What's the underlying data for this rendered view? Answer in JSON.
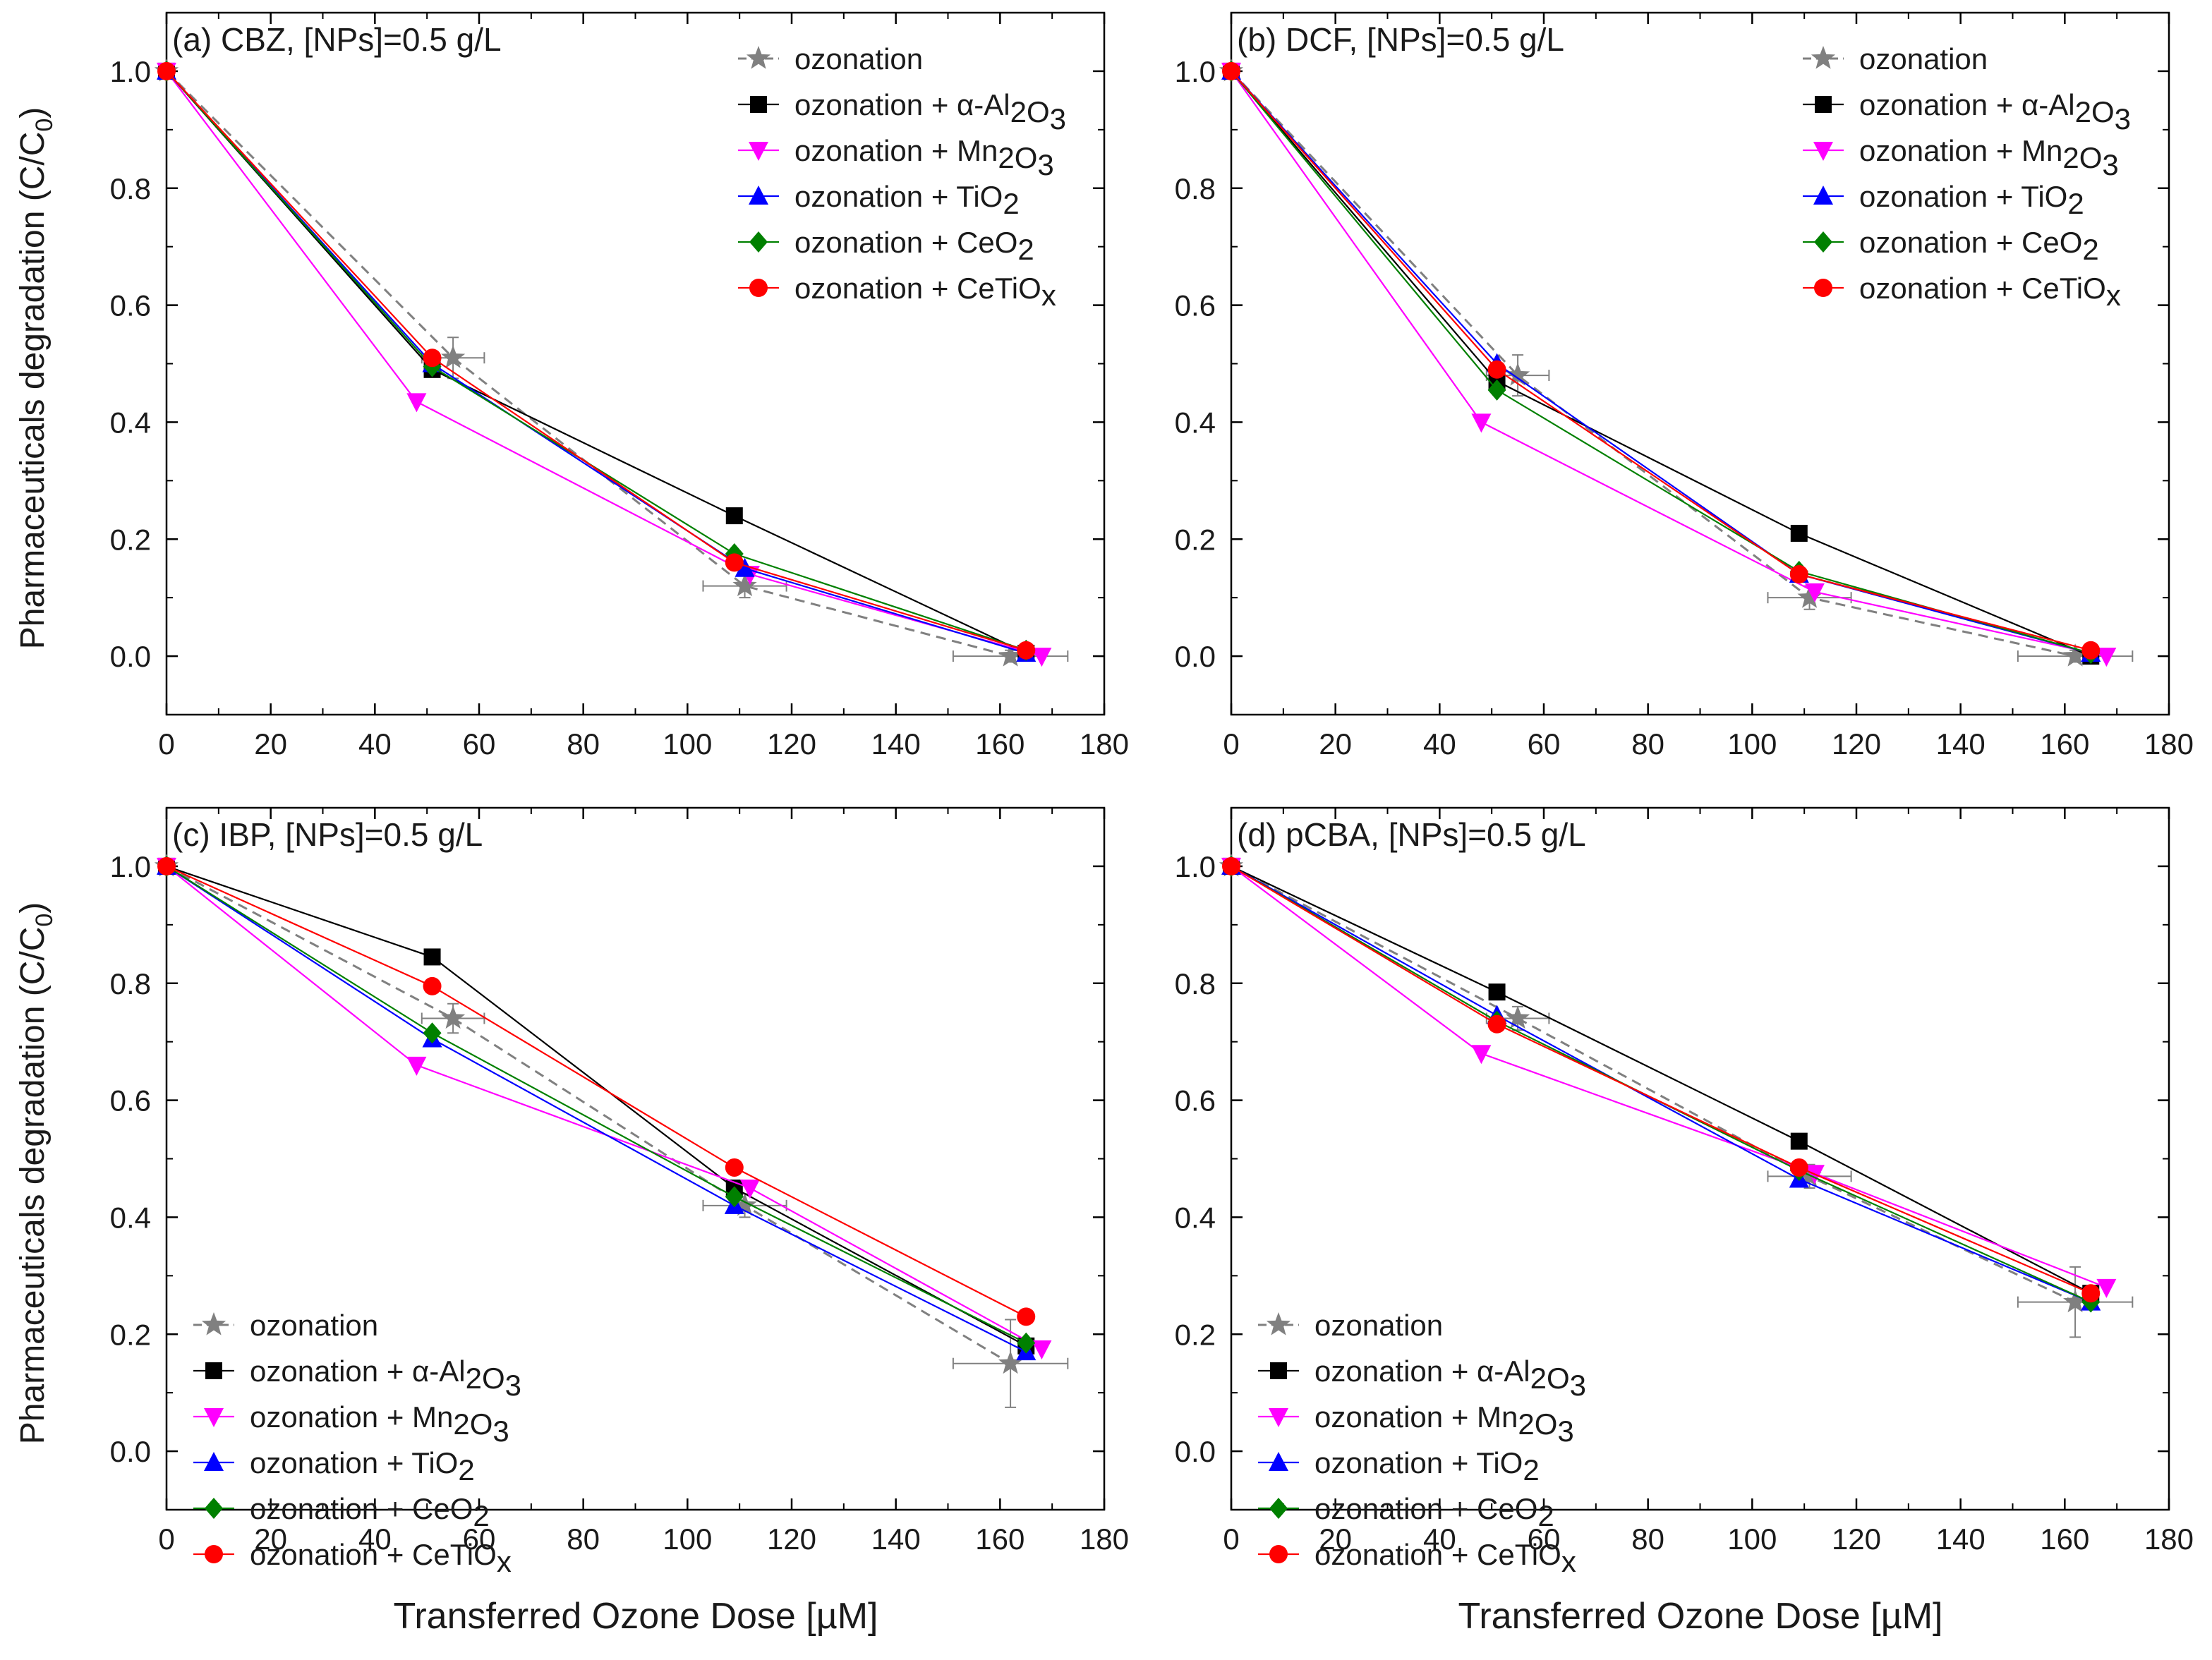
{
  "figure": {
    "ylabel_main": "Pharmaceuticals degradation (C/C",
    "ylabel_sub": "0",
    "ylabel_close": ")",
    "xlabel": "Transferred Ozone Dose [µM]"
  },
  "legend": [
    {
      "key": "ozonation",
      "text": "ozonation",
      "parts": [
        [
          "ozonation",
          ""
        ]
      ]
    },
    {
      "key": "al2o3",
      "text": "ozonation + α-Al2O3",
      "parts": [
        [
          "ozonation + α-Al",
          ""
        ],
        [
          "2",
          "sub"
        ],
        [
          "O",
          ""
        ],
        [
          "3",
          "sub"
        ]
      ]
    },
    {
      "key": "mn2o3",
      "text": "ozonation + Mn2O3",
      "parts": [
        [
          "ozonation + Mn",
          ""
        ],
        [
          "2",
          "sub"
        ],
        [
          "O",
          ""
        ],
        [
          "3",
          "sub"
        ]
      ]
    },
    {
      "key": "tio2",
      "text": "ozonation + TiO2",
      "parts": [
        [
          "ozonation + TiO",
          ""
        ],
        [
          "2",
          "sub"
        ]
      ]
    },
    {
      "key": "ceo2",
      "text": "ozonation + CeO2",
      "parts": [
        [
          "ozonation + CeO",
          ""
        ],
        [
          "2",
          "sub"
        ]
      ]
    },
    {
      "key": "cetiox",
      "text": "ozonation + CeTiOx",
      "parts": [
        [
          "ozonation + CeTiO",
          ""
        ],
        [
          "x",
          "sub"
        ]
      ]
    }
  ],
  "styles": {
    "ozonation": {
      "color": "#808080",
      "marker": "star",
      "dash": true
    },
    "al2o3": {
      "color": "#000000",
      "marker": "square",
      "dash": false
    },
    "mn2o3": {
      "color": "#ff00ff",
      "marker": "tri-down",
      "dash": false
    },
    "tio2": {
      "color": "#0000ff",
      "marker": "tri-up",
      "dash": false
    },
    "ceo2": {
      "color": "#008000",
      "marker": "diamond",
      "dash": false
    },
    "cetiox": {
      "color": "#ff0000",
      "marker": "circle",
      "dash": false
    }
  },
  "chart_data": [
    {
      "type": "line",
      "title": "(a) CBZ, [NPs]=0.5 g/L",
      "xlabel": "Transferred Ozone Dose [µM]",
      "ylabel": "Pharmaceuticals degradation (C/C0)",
      "xlim": [
        0,
        180
      ],
      "ylim": [
        -0.1,
        1.1
      ],
      "xticks": [
        0,
        20,
        40,
        60,
        80,
        100,
        120,
        140,
        160,
        180
      ],
      "yticks": [
        0.0,
        0.2,
        0.4,
        0.6,
        0.8,
        1.0
      ],
      "legend_position": "top-right",
      "series": [
        {
          "key": "ozonation",
          "name": "ozonation",
          "x": [
            0,
            55,
            111,
            162
          ],
          "y": [
            1.0,
            0.51,
            0.12,
            0.0
          ],
          "xerr": [
            0,
            6,
            8,
            11
          ],
          "yerr": [
            0,
            0.035,
            0.02,
            0.01
          ]
        },
        {
          "key": "al2o3",
          "name": "ozonation + α-Al2O3",
          "x": [
            0,
            51,
            109,
            165
          ],
          "y": [
            1.0,
            0.49,
            0.24,
            0.005
          ]
        },
        {
          "key": "mn2o3",
          "name": "ozonation + Mn2O3",
          "x": [
            0,
            48,
            112,
            168
          ],
          "y": [
            1.0,
            0.435,
            0.14,
            0.0
          ]
        },
        {
          "key": "tio2",
          "name": "ozonation + TiO2",
          "x": [
            0,
            51,
            111,
            165
          ],
          "y": [
            1.0,
            0.5,
            0.15,
            0.005
          ]
        },
        {
          "key": "ceo2",
          "name": "ozonation + CeO2",
          "x": [
            0,
            51,
            109,
            165
          ],
          "y": [
            1.0,
            0.495,
            0.175,
            0.01
          ]
        },
        {
          "key": "cetiox",
          "name": "ozonation + CeTiOx",
          "x": [
            0,
            51,
            109,
            165
          ],
          "y": [
            1.0,
            0.51,
            0.16,
            0.01
          ]
        }
      ]
    },
    {
      "type": "line",
      "title": "(b) DCF, [NPs]=0.5 g/L",
      "xlabel": "Transferred Ozone Dose [µM]",
      "ylabel": "Pharmaceuticals degradation (C/C0)",
      "xlim": [
        0,
        180
      ],
      "ylim": [
        -0.1,
        1.1
      ],
      "xticks": [
        0,
        20,
        40,
        60,
        80,
        100,
        120,
        140,
        160,
        180
      ],
      "yticks": [
        0.0,
        0.2,
        0.4,
        0.6,
        0.8,
        1.0
      ],
      "legend_position": "top-right",
      "series": [
        {
          "key": "ozonation",
          "name": "ozonation",
          "x": [
            0,
            55,
            111,
            162
          ],
          "y": [
            1.0,
            0.48,
            0.1,
            0.0
          ],
          "xerr": [
            0,
            6,
            8,
            11
          ],
          "yerr": [
            0,
            0.035,
            0.02,
            0.01
          ]
        },
        {
          "key": "al2o3",
          "name": "ozonation + α-Al2O3",
          "x": [
            0,
            51,
            109,
            165
          ],
          "y": [
            1.0,
            0.47,
            0.21,
            0.0
          ]
        },
        {
          "key": "mn2o3",
          "name": "ozonation + Mn2O3",
          "x": [
            0,
            48,
            112,
            168
          ],
          "y": [
            1.0,
            0.4,
            0.11,
            0.0
          ]
        },
        {
          "key": "tio2",
          "name": "ozonation + TiO2",
          "x": [
            0,
            51,
            109,
            165
          ],
          "y": [
            1.0,
            0.5,
            0.14,
            0.005
          ]
        },
        {
          "key": "ceo2",
          "name": "ozonation + CeO2",
          "x": [
            0,
            51,
            109,
            165
          ],
          "y": [
            1.0,
            0.455,
            0.145,
            0.005
          ]
        },
        {
          "key": "cetiox",
          "name": "ozonation + CeTiOx",
          "x": [
            0,
            51,
            109,
            165
          ],
          "y": [
            1.0,
            0.49,
            0.14,
            0.01
          ]
        }
      ]
    },
    {
      "type": "line",
      "title": "(c) IBP, [NPs]=0.5 g/L",
      "xlabel": "Transferred Ozone Dose [µM]",
      "ylabel": "Pharmaceuticals degradation (C/C0)",
      "xlim": [
        0,
        180
      ],
      "ylim": [
        -0.1,
        1.1
      ],
      "xticks": [
        0,
        20,
        40,
        60,
        80,
        100,
        120,
        140,
        160,
        180
      ],
      "yticks": [
        0.0,
        0.2,
        0.4,
        0.6,
        0.8,
        1.0
      ],
      "legend_position": "bottom-left",
      "series": [
        {
          "key": "ozonation",
          "name": "ozonation",
          "x": [
            0,
            55,
            111,
            162
          ],
          "y": [
            1.0,
            0.74,
            0.42,
            0.15
          ],
          "xerr": [
            0,
            6,
            8,
            11
          ],
          "yerr": [
            0,
            0.025,
            0.02,
            0.075
          ]
        },
        {
          "key": "al2o3",
          "name": "ozonation + α-Al2O3",
          "x": [
            0,
            51,
            109,
            165
          ],
          "y": [
            1.0,
            0.845,
            0.45,
            0.18
          ]
        },
        {
          "key": "mn2o3",
          "name": "ozonation + Mn2O3",
          "x": [
            0,
            48,
            112,
            168
          ],
          "y": [
            1.0,
            0.66,
            0.45,
            0.175
          ]
        },
        {
          "key": "tio2",
          "name": "ozonation + TiO2",
          "x": [
            0,
            51,
            109,
            165
          ],
          "y": [
            1.0,
            0.705,
            0.42,
            0.17
          ]
        },
        {
          "key": "ceo2",
          "name": "ozonation + CeO2",
          "x": [
            0,
            51,
            109,
            165
          ],
          "y": [
            1.0,
            0.715,
            0.435,
            0.185
          ]
        },
        {
          "key": "cetiox",
          "name": "ozonation + CeTiOx",
          "x": [
            0,
            51,
            109,
            165
          ],
          "y": [
            1.0,
            0.795,
            0.485,
            0.23
          ]
        }
      ]
    },
    {
      "type": "line",
      "title": "(d) pCBA, [NPs]=0.5 g/L",
      "xlabel": "Transferred Ozone Dose [µM]",
      "ylabel": "Pharmaceuticals degradation (C/C0)",
      "xlim": [
        0,
        180
      ],
      "ylim": [
        -0.1,
        1.1
      ],
      "xticks": [
        0,
        20,
        40,
        60,
        80,
        100,
        120,
        140,
        160,
        180
      ],
      "yticks": [
        0.0,
        0.2,
        0.4,
        0.6,
        0.8,
        1.0
      ],
      "legend_position": "bottom-left",
      "series": [
        {
          "key": "ozonation",
          "name": "ozonation",
          "x": [
            0,
            55,
            111,
            162
          ],
          "y": [
            1.0,
            0.74,
            0.47,
            0.255
          ],
          "xerr": [
            0,
            6,
            8,
            11
          ],
          "yerr": [
            0,
            0.02,
            0.02,
            0.06
          ]
        },
        {
          "key": "al2o3",
          "name": "ozonation + α-Al2O3",
          "x": [
            0,
            51,
            109,
            165
          ],
          "y": [
            1.0,
            0.785,
            0.53,
            0.27
          ]
        },
        {
          "key": "mn2o3",
          "name": "ozonation + Mn2O3",
          "x": [
            0,
            48,
            112,
            168
          ],
          "y": [
            1.0,
            0.68,
            0.475,
            0.28
          ]
        },
        {
          "key": "tio2",
          "name": "ozonation + TiO2",
          "x": [
            0,
            51,
            109,
            165
          ],
          "y": [
            1.0,
            0.745,
            0.465,
            0.255
          ]
        },
        {
          "key": "ceo2",
          "name": "ozonation + CeO2",
          "x": [
            0,
            51,
            109,
            165
          ],
          "y": [
            1.0,
            0.735,
            0.48,
            0.255
          ]
        },
        {
          "key": "cetiox",
          "name": "ozonation + CeTiOx",
          "x": [
            0,
            51,
            109,
            165
          ],
          "y": [
            1.0,
            0.73,
            0.485,
            0.27
          ]
        }
      ]
    }
  ]
}
